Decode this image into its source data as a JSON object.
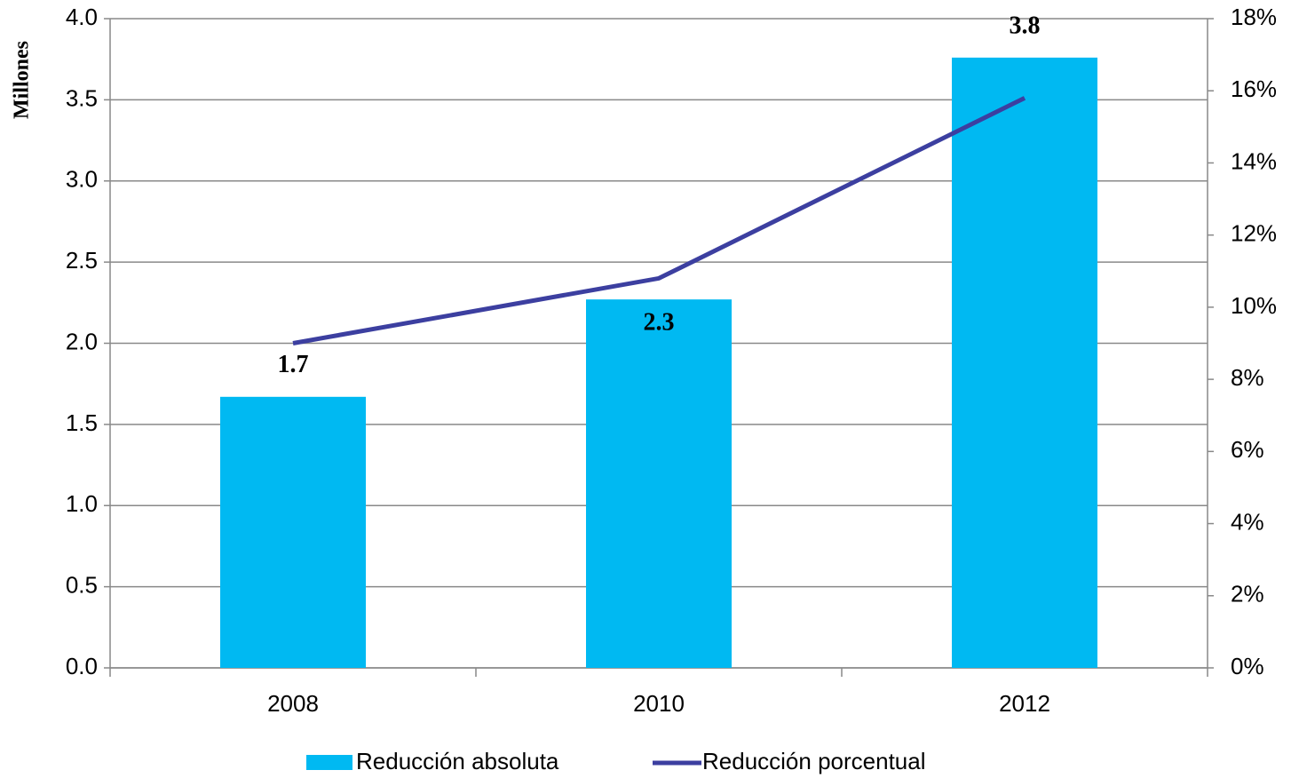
{
  "chart_data": {
    "type": "bar",
    "y_axis_label": "Millones",
    "categories": [
      "2008",
      "2010",
      "2012"
    ],
    "series": [
      {
        "name": "Reducción absoluta",
        "type": "bar",
        "color": "#00b9f2",
        "values": [
          1.67,
          2.27,
          3.76
        ],
        "value_labels": [
          "1.7",
          "2.3",
          "3.8"
        ]
      },
      {
        "name": "Reducción porcentual",
        "type": "line",
        "axis": "y2",
        "color": "#3c3fa0",
        "values": [
          9.0,
          10.8,
          15.8
        ]
      }
    ],
    "ylim": [
      0,
      4
    ],
    "yticks": [
      {
        "value": 0,
        "label": "0.0"
      },
      0.5,
      {
        "value": 1,
        "label": "1.0"
      },
      1.5,
      {
        "value": 2,
        "label": "2.0"
      },
      2.5,
      {
        "value": 3,
        "label": "3.0"
      },
      3.5,
      {
        "value": 4,
        "label": "4.0"
      }
    ],
    "y2lim": [
      0,
      18
    ],
    "y2ticks": [
      {
        "value": 0,
        "label": "0%"
      },
      {
        "value": 2,
        "label": "2%"
      },
      {
        "value": 4,
        "label": "4%"
      },
      {
        "value": 6,
        "label": "6%"
      },
      {
        "value": 8,
        "label": "8%"
      },
      {
        "value": 10,
        "label": "10%"
      },
      {
        "value": 12,
        "label": "12%"
      },
      {
        "value": 14,
        "label": "14%"
      },
      {
        "value": 16,
        "label": "16%"
      },
      {
        "value": 18,
        "label": "18%"
      }
    ],
    "grid": true,
    "legend": "bottom"
  }
}
